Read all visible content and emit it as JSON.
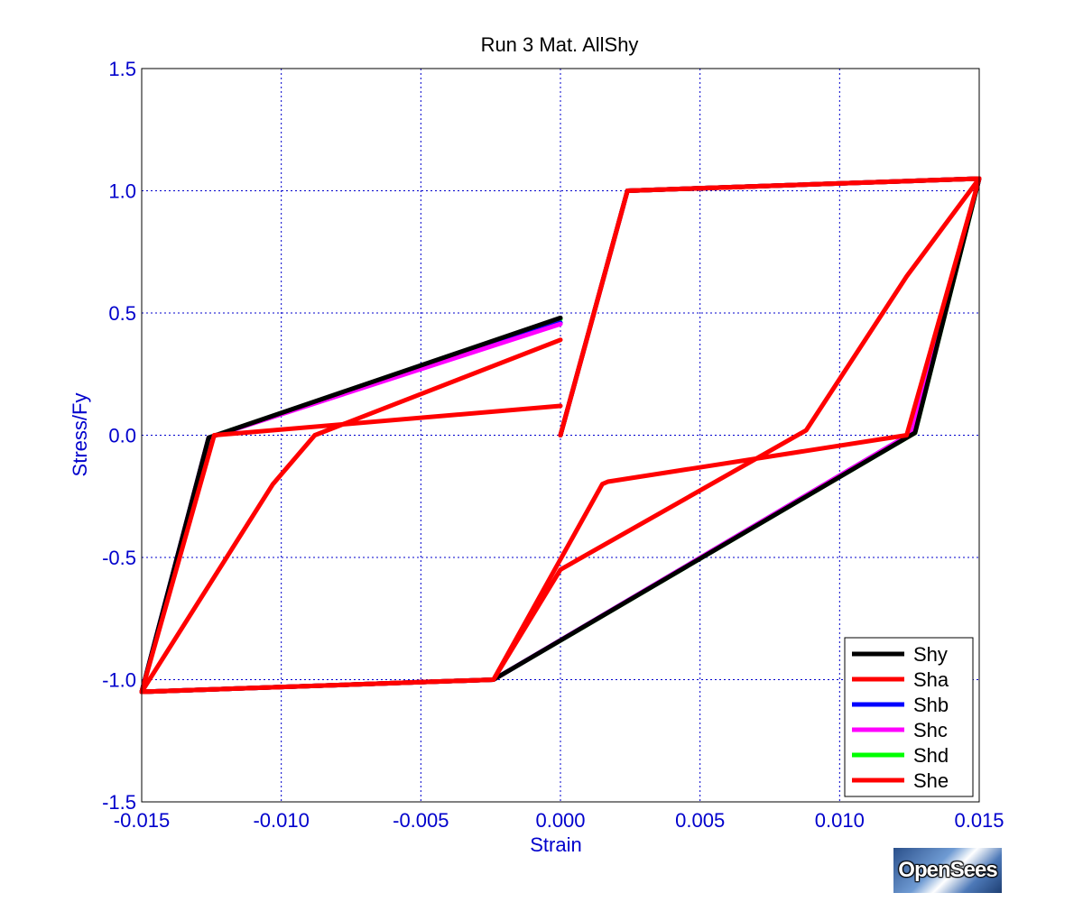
{
  "chart_data": {
    "type": "line",
    "title": "Run 3   Mat. AllShy",
    "xlabel": "Strain",
    "ylabel": "Stress/Fy",
    "xlim": [
      -0.015,
      0.015
    ],
    "ylim": [
      -1.5,
      1.5
    ],
    "xticks": [
      -0.015,
      -0.01,
      -0.005,
      0.0,
      0.005,
      0.01,
      0.015
    ],
    "xtick_labels": [
      "-0.015",
      "-0.010",
      "-0.005",
      "0.000",
      "0.005",
      "0.010",
      "0.015"
    ],
    "yticks": [
      1.5,
      1.0,
      0.5,
      0.0,
      -0.5,
      -1.0,
      -1.5
    ],
    "ytick_labels": [
      "1.5",
      "1.0",
      "0.5",
      "0.0",
      "-0.5",
      "-1.0",
      "-1.5"
    ],
    "grid": true,
    "legend_position": "bottom-right",
    "series": [
      {
        "name": "Shy",
        "color": "#000000",
        "x": [
          0,
          0.0024,
          0.015,
          0.0127,
          -0.0024,
          -0.015,
          -0.0126,
          0
        ],
        "y": [
          0,
          1.0,
          1.05,
          0.01,
          -1.0,
          -1.05,
          -0.01,
          0.48
        ]
      },
      {
        "name": "Sha",
        "color": "#ff0000",
        "x": [
          0,
          0.0024,
          0.015,
          0.0124,
          0.0017,
          0.0015,
          -0.0024,
          -0.015,
          -0.0124,
          0
        ],
        "y": [
          0,
          1.0,
          1.05,
          0.0,
          -0.19,
          -0.2,
          -1.0,
          -1.05,
          0.0,
          0.12
        ]
      },
      {
        "name": "Shb",
        "color": "#0000ff",
        "x": [
          0,
          0.0024,
          0.015,
          0.0126,
          -0.0024,
          -0.015,
          -0.0126,
          0
        ],
        "y": [
          0,
          1.0,
          1.05,
          0.01,
          -1.0,
          -1.05,
          -0.01,
          0.46
        ]
      },
      {
        "name": "Shc",
        "color": "#ff00ff",
        "x": [
          0,
          0.0024,
          0.015,
          0.0126,
          -0.0024,
          -0.015,
          -0.0126,
          0
        ],
        "y": [
          0,
          1.0,
          1.05,
          0.01,
          -1.0,
          -1.05,
          -0.01,
          0.455
        ]
      },
      {
        "name": "Shd",
        "color": "#00ff00",
        "x": [
          0,
          0.0024,
          0.015,
          0.0127,
          -0.0024,
          -0.015,
          -0.0126,
          0
        ],
        "y": [
          0,
          1.0,
          1.05,
          0.01,
          -1.0,
          -1.05,
          -0.01,
          0.475
        ]
      },
      {
        "name": "She",
        "color": "#ff0000",
        "x": [
          0,
          0.0024,
          0.015,
          0.0124,
          0.0088,
          0.0,
          -0.0024,
          -0.015,
          -0.0103,
          -0.0088,
          0
        ],
        "y": [
          0,
          1.0,
          1.05,
          0.65,
          0.02,
          -0.55,
          -1.0,
          -1.05,
          -0.2,
          0.0,
          0.39
        ]
      }
    ]
  },
  "logo": {
    "text": "OpenSees"
  }
}
